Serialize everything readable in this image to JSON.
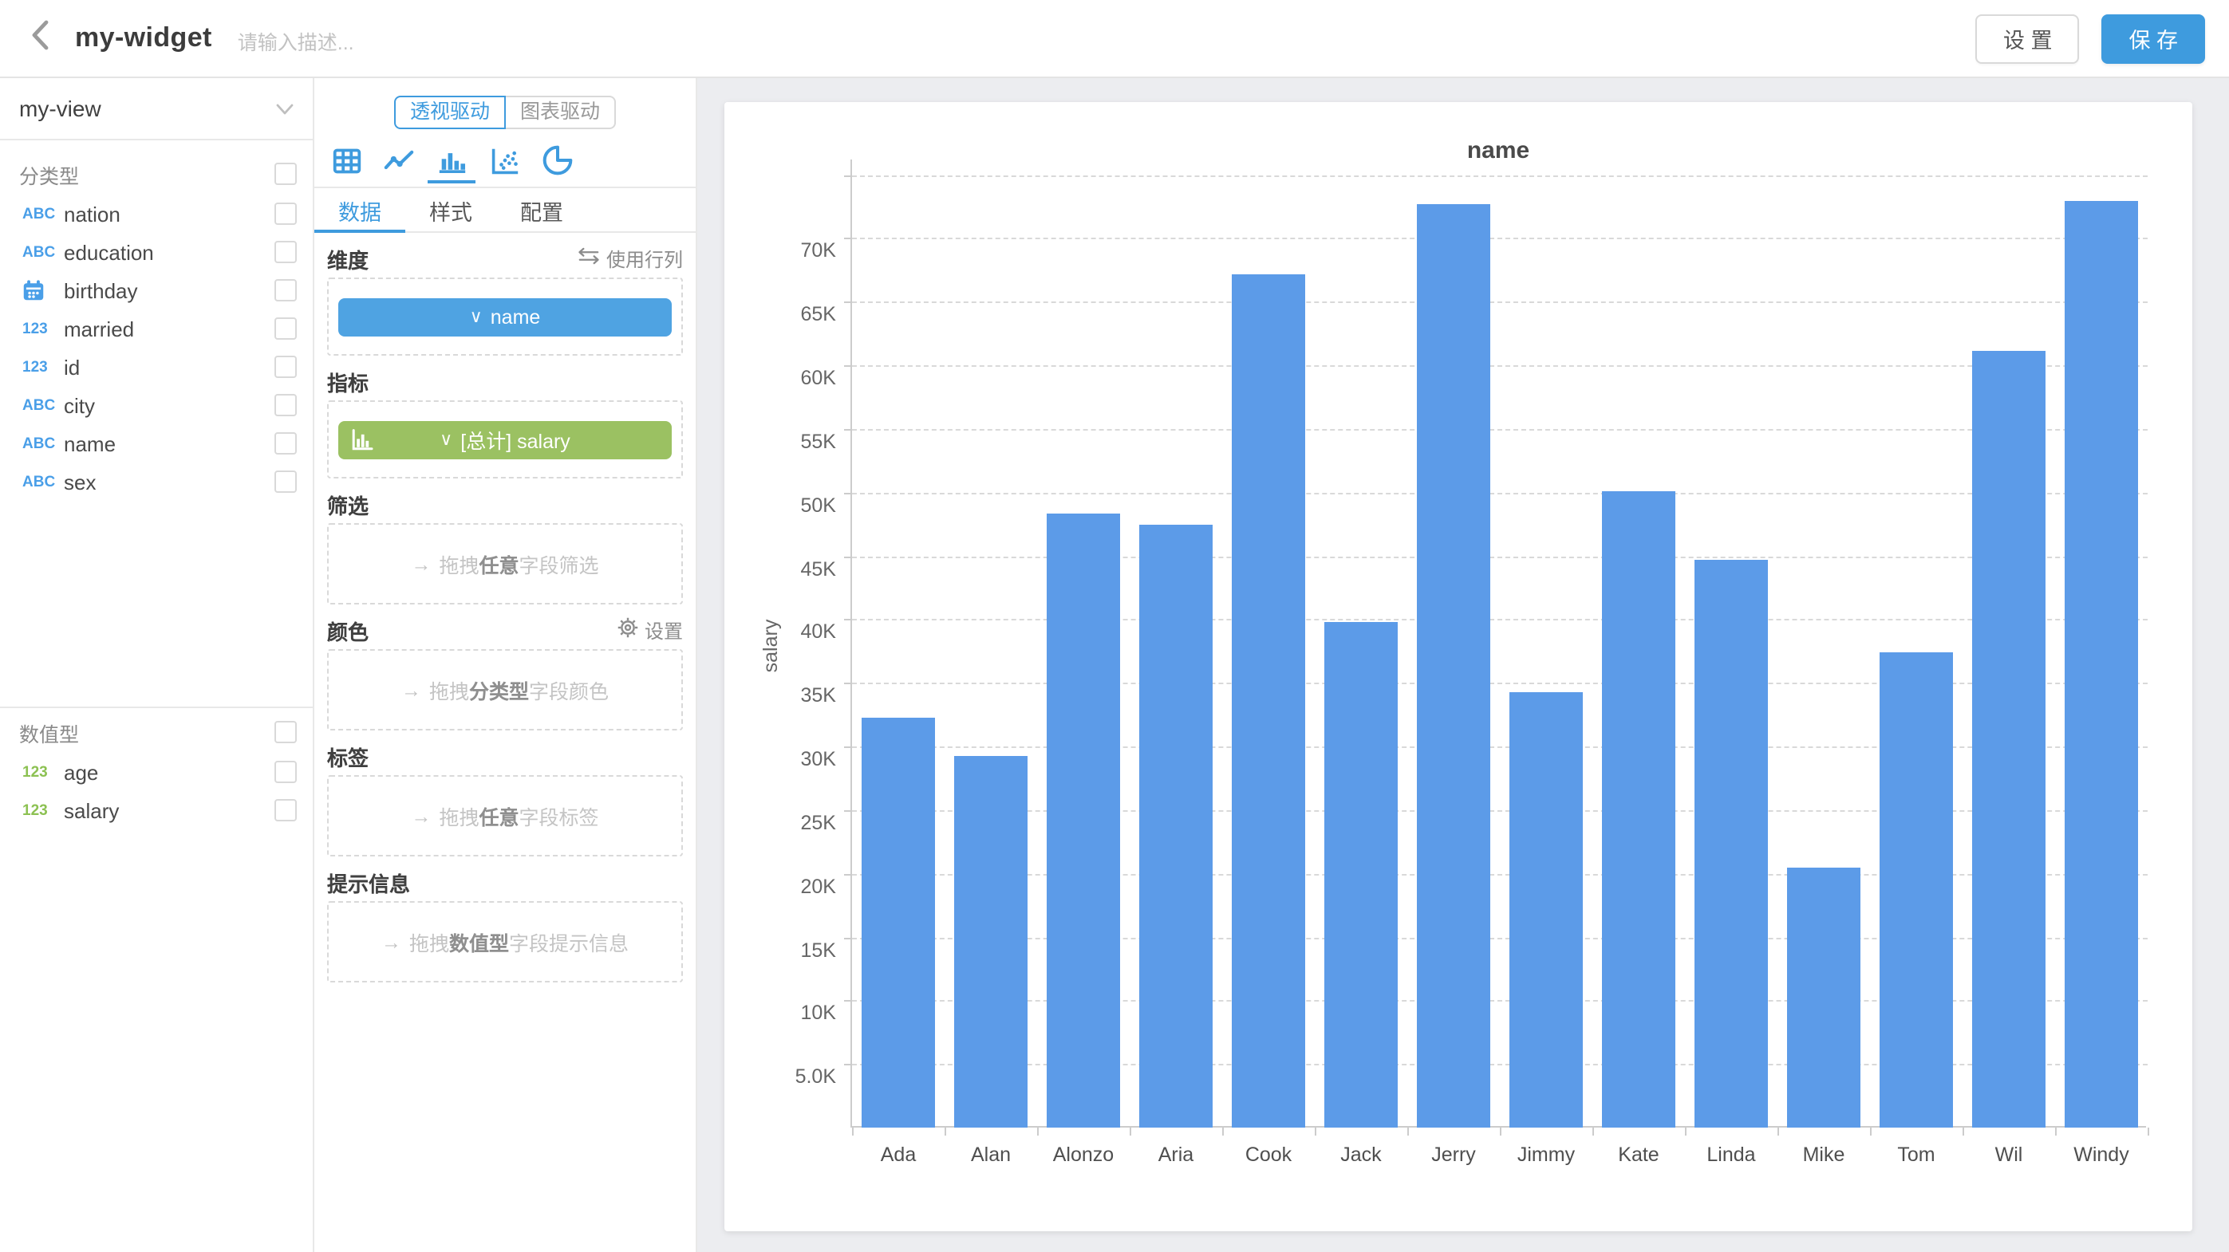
{
  "colors": {
    "accent": "#3E9BDE",
    "bar": "#5C9BE8",
    "chip-dimension": "#4FA3E2",
    "chip-metric": "#9BC162",
    "icon-blue": "#4A9FE8",
    "icon-green": "#8CC152"
  },
  "header": {
    "title": "my-widget",
    "description_placeholder": "请输入描述...",
    "settings_label": "设 置",
    "save_label": "保 存"
  },
  "sidebar": {
    "view": "my-view",
    "sections": [
      {
        "label": "分类型",
        "fields": [
          {
            "icon_label": "ABC",
            "name": "nation"
          },
          {
            "icon_label": "ABC",
            "name": "education"
          },
          {
            "icon_label": "",
            "name": "birthday"
          },
          {
            "icon_label": "123",
            "name": "married"
          },
          {
            "icon_label": "123",
            "name": "id"
          },
          {
            "icon_label": "ABC",
            "name": "city"
          },
          {
            "icon_label": "ABC",
            "name": "name"
          },
          {
            "icon_label": "ABC",
            "name": "sex"
          }
        ]
      },
      {
        "label": "数值型",
        "fields": [
          {
            "icon_label": "123",
            "name": "age"
          },
          {
            "icon_label": "123",
            "name": "salary"
          }
        ]
      }
    ]
  },
  "config": {
    "modes": [
      "透视驱动",
      "图表驱动"
    ],
    "active_mode": "透视驱动",
    "chart_types": [
      "table",
      "line",
      "bar",
      "scatter",
      "pie"
    ],
    "active_chart_type": "bar",
    "tabs": [
      "数据",
      "样式",
      "配置"
    ],
    "active_tab": "数据",
    "sections": {
      "dimension": {
        "label": "维度",
        "action_label": "使用行列",
        "chip": {
          "chevron": "∨",
          "text": "name"
        }
      },
      "metric": {
        "label": "指标",
        "chip": {
          "chevron": "∨",
          "text": "[总计] salary"
        }
      },
      "filter": {
        "label": "筛选",
        "drop": {
          "arrow": "→",
          "pre": "拖拽",
          "bold": "任意",
          "post": "字段筛选"
        }
      },
      "color": {
        "label": "颜色",
        "action_label": "设置",
        "drop": {
          "arrow": "→",
          "pre": "拖拽",
          "bold": "分类型",
          "post": "字段颜色"
        }
      },
      "label": {
        "label": "标签",
        "drop": {
          "arrow": "→",
          "pre": "拖拽",
          "bold": "任意",
          "post": "字段标签"
        }
      },
      "tooltip": {
        "label": "提示信息",
        "drop": {
          "arrow": "→",
          "pre": "拖拽",
          "bold": "数值型",
          "post": "字段提示信息"
        }
      }
    }
  },
  "chart_data": {
    "type": "bar",
    "title": "name",
    "xlabel": "",
    "ylabel": "salary",
    "categories": [
      "Ada",
      "Alan",
      "Alonzo",
      "Aria",
      "Cook",
      "Jack",
      "Jerry",
      "Jimmy",
      "Kate",
      "Linda",
      "Mike",
      "Tom",
      "Wil",
      "Windy"
    ],
    "values": [
      32300,
      29200,
      48400,
      47500,
      67200,
      39800,
      72700,
      34300,
      50100,
      44700,
      20500,
      37400,
      61200,
      72900
    ],
    "bar_color": "#5C9BE8",
    "ylim": [
      0,
      76200
    ],
    "grid": "dashed",
    "legend": "none",
    "y_ticks": [
      {
        "label": "",
        "value": 75000
      },
      {
        "label": "70K",
        "value": 70000
      },
      {
        "label": "65K",
        "value": 65000
      },
      {
        "label": "60K",
        "value": 60000
      },
      {
        "label": "55K",
        "value": 55000
      },
      {
        "label": "50K",
        "value": 50000
      },
      {
        "label": "45K",
        "value": 45000
      },
      {
        "label": "40K",
        "value": 40000
      },
      {
        "label": "35K",
        "value": 35000
      },
      {
        "label": "30K",
        "value": 30000
      },
      {
        "label": "25K",
        "value": 25000
      },
      {
        "label": "20K",
        "value": 20000
      },
      {
        "label": "15K",
        "value": 15000
      },
      {
        "label": "10K",
        "value": 10000
      },
      {
        "label": "5.0K",
        "value": 5000
      }
    ]
  }
}
